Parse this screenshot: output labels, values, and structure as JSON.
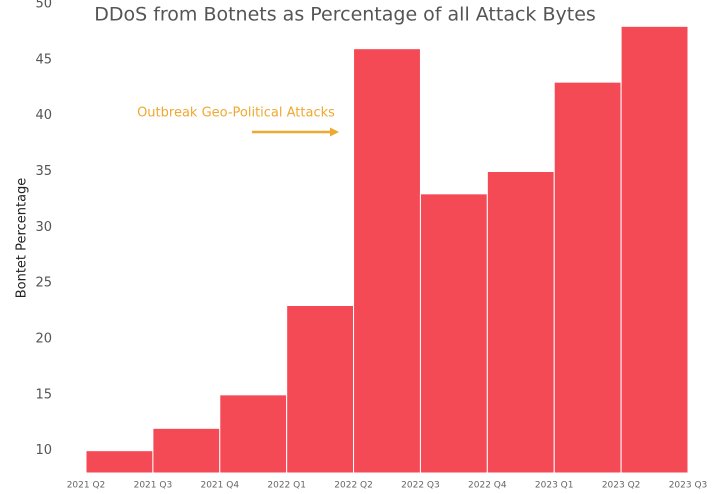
{
  "chart_data": {
    "type": "histogram",
    "title": "DDoS from Botnets as Percentage of all Attack Bytes",
    "y_label": "Bontet Percentage",
    "annotation": "Outbreak Geo-Political Attacks",
    "bins": [
      "2021 Q2",
      "2021 Q3",
      "2021 Q4",
      "2022 Q1",
      "2022 Q2",
      "2022 Q3",
      "2022 Q4",
      "2023 Q1",
      "2023 Q2",
      "2023 Q3"
    ],
    "values": [
      10,
      12,
      15,
      23,
      46,
      33,
      35,
      43,
      48
    ],
    "color": "#f44a56",
    "annotation_color": "#f0a830",
    "ylim": [
      8,
      50
    ],
    "yticks": [
      10,
      15,
      20,
      25,
      30,
      35,
      40,
      45,
      50
    ]
  }
}
